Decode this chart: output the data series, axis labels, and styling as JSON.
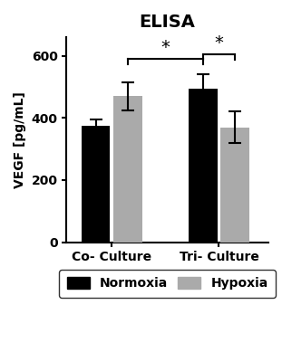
{
  "title": "ELISA",
  "ylabel": "VEGF [pg/mL]",
  "groups": [
    "Co- Culture",
    "Tri- Culture"
  ],
  "conditions": [
    "Normoxia",
    "Hypoxia"
  ],
  "values": [
    [
      375,
      470
    ],
    [
      495,
      370
    ]
  ],
  "errors": [
    [
      20,
      45
    ],
    [
      45,
      50
    ]
  ],
  "bar_colors": [
    "#000000",
    "#aaaaaa"
  ],
  "bar_width": 0.35,
  "ylim": [
    0,
    660
  ],
  "yticks": [
    0,
    200,
    400,
    600
  ],
  "legend_labels": [
    "Normoxia",
    "Hypoxia"
  ],
  "background_color": "#ffffff",
  "group_centers": [
    1.0,
    2.3
  ]
}
